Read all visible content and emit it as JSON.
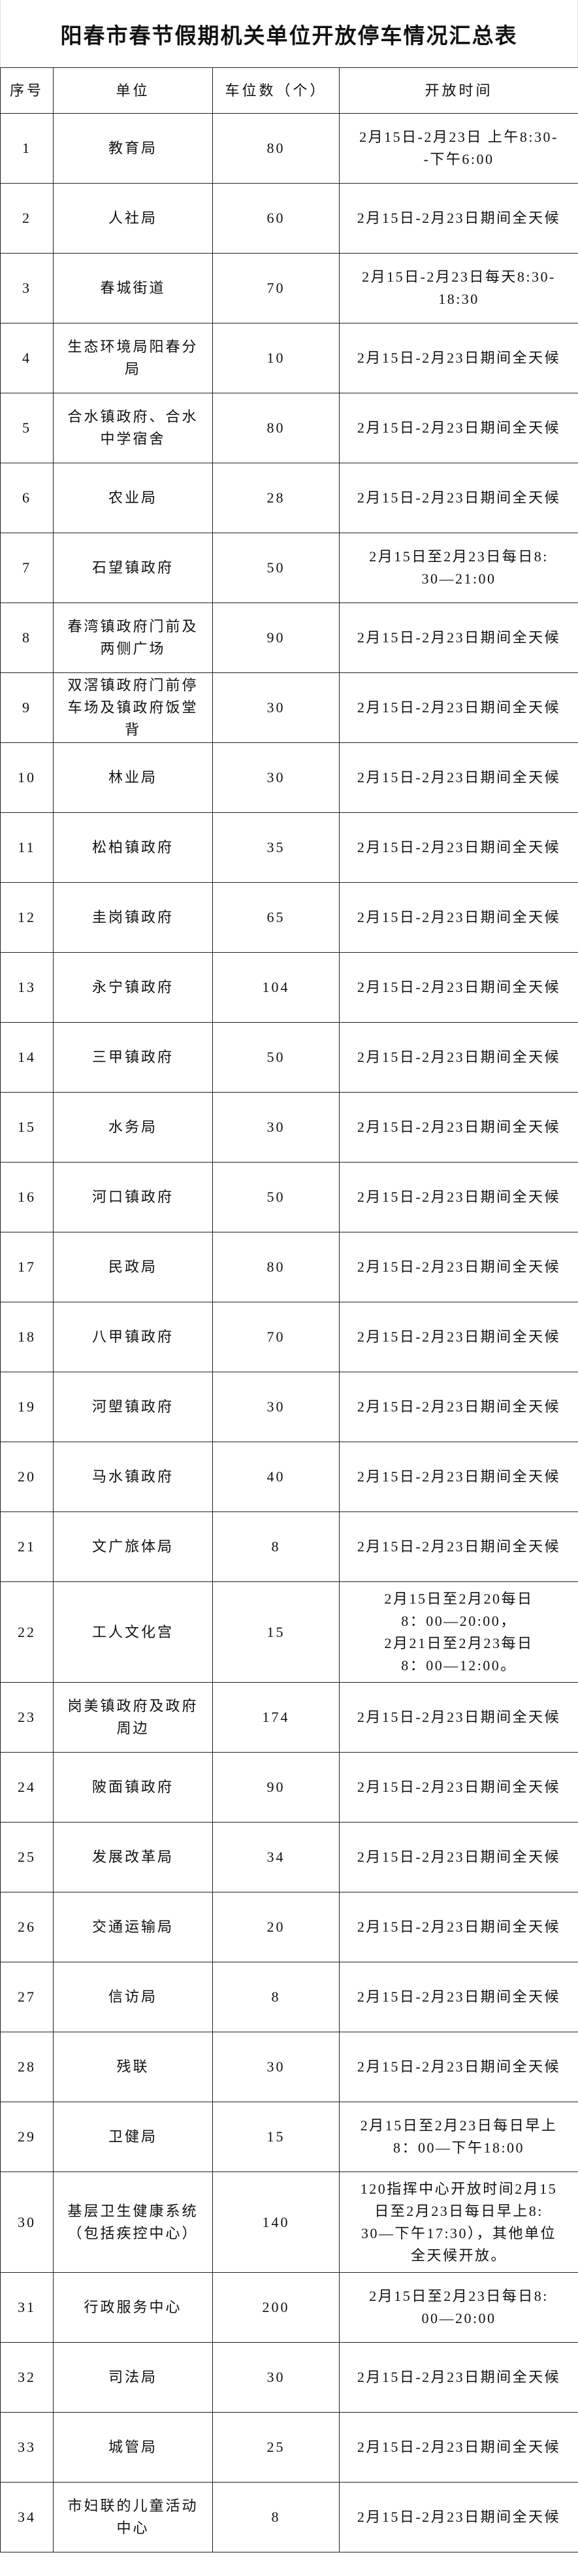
{
  "title": "阳春市春节假期机关单位开放停车情况汇总表",
  "columns": [
    "序号",
    "单位",
    "车位数（个）",
    "开放时间"
  ],
  "rows": [
    {
      "no": "1",
      "unit": "教育局",
      "spaces": "80",
      "time": "2月15日-2月23日 上午8:30-\n-下午6:00"
    },
    {
      "no": "2",
      "unit": "人社局",
      "spaces": "60",
      "time": "2月15日-2月23日期间全天候"
    },
    {
      "no": "3",
      "unit": "春城街道",
      "spaces": "70",
      "time": "2月15日-2月23日每天8:30-\n18:30"
    },
    {
      "no": "4",
      "unit": "生态环境局阳春分\n局",
      "spaces": "10",
      "time": "2月15日-2月23日期间全天候"
    },
    {
      "no": "5",
      "unit": "合水镇政府、合水\n中学宿舍",
      "spaces": "80",
      "time": "2月15日-2月23日期间全天候"
    },
    {
      "no": "6",
      "unit": "农业局",
      "spaces": "28",
      "time": "2月15日-2月23日期间全天候"
    },
    {
      "no": "7",
      "unit": "石望镇政府",
      "spaces": "50",
      "time": "2月15日至2月23日每日8:\n30—21:00"
    },
    {
      "no": "8",
      "unit": "春湾镇政府门前及\n两侧广场",
      "spaces": "90",
      "time": "2月15日-2月23日期间全天候"
    },
    {
      "no": "9",
      "unit": "双滘镇政府门前停\n车场及镇政府饭堂\n背",
      "spaces": "30",
      "time": "2月15日-2月23日期间全天候"
    },
    {
      "no": "10",
      "unit": "林业局",
      "spaces": "30",
      "time": "2月15日-2月23日期间全天候"
    },
    {
      "no": "11",
      "unit": "松柏镇政府",
      "spaces": "35",
      "time": "2月15日-2月23日期间全天候"
    },
    {
      "no": "12",
      "unit": "圭岗镇政府",
      "spaces": "65",
      "time": "2月15日-2月23日期间全天候"
    },
    {
      "no": "13",
      "unit": "永宁镇政府",
      "spaces": "104",
      "time": "2月15日-2月23日期间全天候"
    },
    {
      "no": "14",
      "unit": "三甲镇政府",
      "spaces": "50",
      "time": "2月15日-2月23日期间全天候"
    },
    {
      "no": "15",
      "unit": "水务局",
      "spaces": "30",
      "time": "2月15日-2月23日期间全天候"
    },
    {
      "no": "16",
      "unit": "河口镇政府",
      "spaces": "50",
      "time": "2月15日-2月23日期间全天候"
    },
    {
      "no": "17",
      "unit": "民政局",
      "spaces": "80",
      "time": "2月15日-2月23日期间全天候"
    },
    {
      "no": "18",
      "unit": "八甲镇政府",
      "spaces": "70",
      "time": "2月15日-2月23日期间全天候"
    },
    {
      "no": "19",
      "unit": "河塱镇政府",
      "spaces": "30",
      "time": "2月15日-2月23日期间全天候"
    },
    {
      "no": "20",
      "unit": "马水镇政府",
      "spaces": "40",
      "time": "2月15日-2月23日期间全天候"
    },
    {
      "no": "21",
      "unit": "文广旅体局",
      "spaces": "8",
      "time": "2月15日-2月23日期间全天候"
    },
    {
      "no": "22",
      "unit": "工人文化宫",
      "spaces": "15",
      "time": "2月15日至2月20每日\n8：00—20:00，\n2月21日至2月23每日\n8：00—12:00。",
      "tall": true
    },
    {
      "no": "23",
      "unit": "岗美镇政府及政府\n周边",
      "spaces": "174",
      "time": "2月15日-2月23日期间全天候"
    },
    {
      "no": "24",
      "unit": "陂面镇政府",
      "spaces": "90",
      "time": "2月15日-2月23日期间全天候"
    },
    {
      "no": "25",
      "unit": "发展改革局",
      "spaces": "34",
      "time": "2月15日-2月23日期间全天候"
    },
    {
      "no": "26",
      "unit": "交通运输局",
      "spaces": "20",
      "time": "2月15日-2月23日期间全天候"
    },
    {
      "no": "27",
      "unit": "信访局",
      "spaces": "8",
      "time": "2月15日-2月23日期间全天候"
    },
    {
      "no": "28",
      "unit": "残联",
      "spaces": "30",
      "time": "2月15日-2月23日期间全天候"
    },
    {
      "no": "29",
      "unit": "卫健局",
      "spaces": "15",
      "time": "2月15日至2月23日每日早上\n8：00—下午18:00"
    },
    {
      "no": "30",
      "unit": "基层卫生健康系统\n（包括疾控中心）",
      "spaces": "140",
      "time": "120指挥中心开放时间2月15\n日至2月23日每日早上8:\n30—下午17:30），其他单位\n全天候开放。",
      "tall": true
    },
    {
      "no": "31",
      "unit": "行政服务中心",
      "spaces": "200",
      "time": "2月15日至2月23日每日8:\n00—20:00"
    },
    {
      "no": "32",
      "unit": "司法局",
      "spaces": "30",
      "time": "2月15日-2月23日期间全天候"
    },
    {
      "no": "33",
      "unit": "城管局",
      "spaces": "25",
      "time": "2月15日-2月23日期间全天候"
    },
    {
      "no": "34",
      "unit": "市妇联的儿童活动\n中心",
      "spaces": "8",
      "time": "2月15日-2月23日期间全天候"
    }
  ]
}
